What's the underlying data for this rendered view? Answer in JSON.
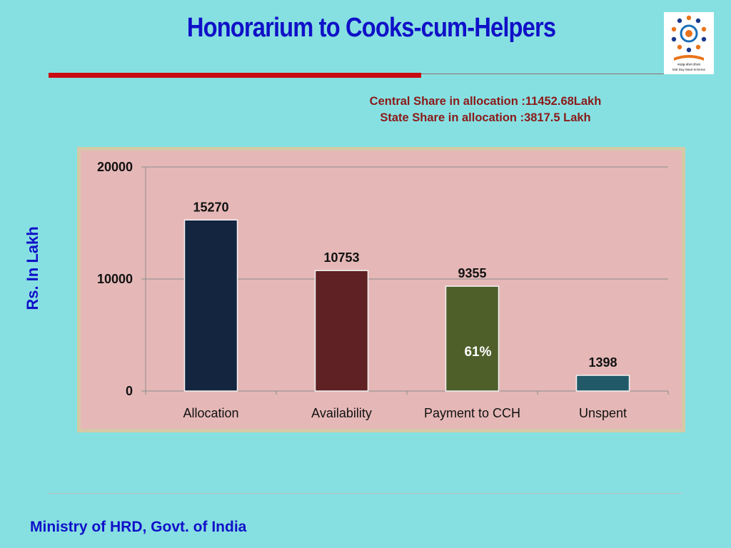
{
  "slide": {
    "title": "Honorarium to Cooks-cum-Helpers",
    "central_share": "Central Share in allocation :11452.68Lakh",
    "state_share": "State Share in allocation :3817.5 Lakh",
    "y_axis_label": "Rs. In Lakh",
    "footer": "Ministry of HRD, Govt. of India",
    "logo": {
      "icon": "mid-day-meal-scheme-logo",
      "text": "Mid Day Meal Scheme"
    }
  },
  "chart_data": {
    "type": "bar",
    "title": "",
    "categories": [
      "Allocation",
      "Availability",
      "Payment to CCH",
      "Unspent"
    ],
    "values": [
      15270,
      10753,
      9355,
      1398
    ],
    "data_labels": [
      "15270",
      "10753",
      "9355",
      "1398"
    ],
    "bar_colors": [
      "#13253f",
      "#5f2123",
      "#4e5f2a",
      "#215968"
    ],
    "annotation": {
      "category": "Payment to CCH",
      "text": "61%"
    },
    "yticks": [
      0,
      10000,
      20000
    ],
    "ylim": [
      0,
      20000
    ],
    "ylabel": "Rs. In Lakh",
    "grid": true,
    "legend": "none"
  }
}
